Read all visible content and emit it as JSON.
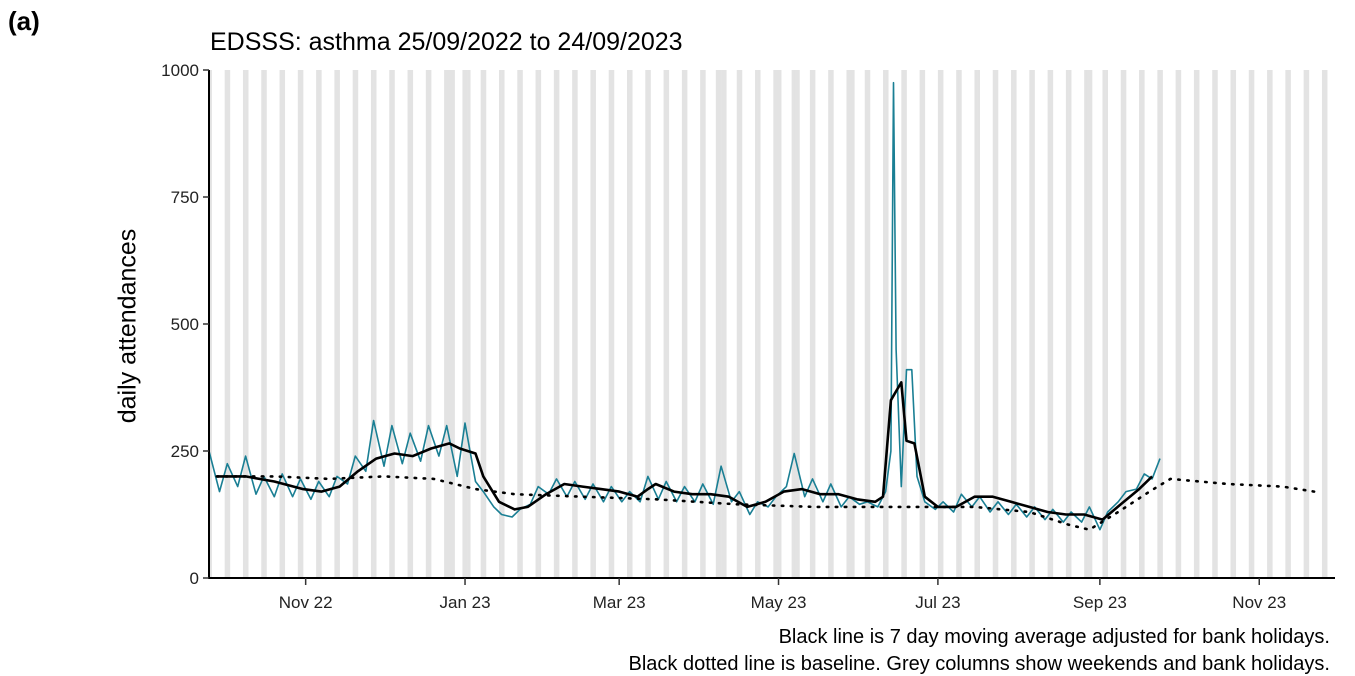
{
  "panel_label": "(a)",
  "chart_data": {
    "type": "line",
    "title": "EDSSS: asthma 25/09/2022 to 24/09/2023",
    "xlabel": "",
    "ylabel": "daily attendances",
    "ylim": [
      0,
      1000
    ],
    "yticks": [
      0,
      250,
      500,
      750,
      1000
    ],
    "xlim": [
      "2022-09-25",
      "2023-11-30"
    ],
    "xticks": [
      {
        "label": "Nov 22",
        "date": "2022-11-01"
      },
      {
        "label": "Jan 23",
        "date": "2023-01-01"
      },
      {
        "label": "Mar 23",
        "date": "2023-03-01"
      },
      {
        "label": "May 23",
        "date": "2023-05-01"
      },
      {
        "label": "Jul 23",
        "date": "2023-07-01"
      },
      {
        "label": "Sep 23",
        "date": "2023-09-01"
      },
      {
        "label": "Nov 23",
        "date": "2023-11-01"
      }
    ],
    "grid": false,
    "legend": "none",
    "shaded_columns": "weekends and bank holidays",
    "bank_holidays": [
      "2022-12-26",
      "2022-12-27",
      "2023-01-02",
      "2023-04-07",
      "2023-04-10",
      "2023-05-01",
      "2023-05-08",
      "2023-05-29",
      "2023-08-28"
    ],
    "colors": {
      "daily": "#1a7f94",
      "moving_average": "#000000",
      "baseline": "#000000",
      "shading": "#e3e3e3"
    },
    "series": [
      {
        "style": "daily",
        "start": "2022-09-25",
        "end": "2023-09-24",
        "points": [
          [
            "2022-09-25",
            250
          ],
          [
            "2022-09-29",
            170
          ],
          [
            "2022-10-02",
            225
          ],
          [
            "2022-10-06",
            180
          ],
          [
            "2022-10-09",
            240
          ],
          [
            "2022-10-13",
            165
          ],
          [
            "2022-10-16",
            200
          ],
          [
            "2022-10-20",
            160
          ],
          [
            "2022-10-23",
            205
          ],
          [
            "2022-10-27",
            160
          ],
          [
            "2022-10-30",
            195
          ],
          [
            "2022-11-03",
            155
          ],
          [
            "2022-11-06",
            190
          ],
          [
            "2022-11-10",
            160
          ],
          [
            "2022-11-13",
            200
          ],
          [
            "2022-11-17",
            185
          ],
          [
            "2022-11-20",
            240
          ],
          [
            "2022-11-24",
            210
          ],
          [
            "2022-11-27",
            310
          ],
          [
            "2022-12-01",
            220
          ],
          [
            "2022-12-04",
            300
          ],
          [
            "2022-12-08",
            225
          ],
          [
            "2022-12-11",
            285
          ],
          [
            "2022-12-15",
            230
          ],
          [
            "2022-12-18",
            300
          ],
          [
            "2022-12-22",
            240
          ],
          [
            "2022-12-25",
            300
          ],
          [
            "2022-12-29",
            200
          ],
          [
            "2023-01-01",
            305
          ],
          [
            "2023-01-05",
            190
          ],
          [
            "2023-01-08",
            170
          ],
          [
            "2023-01-12",
            140
          ],
          [
            "2023-01-15",
            125
          ],
          [
            "2023-01-19",
            120
          ],
          [
            "2023-01-22",
            135
          ],
          [
            "2023-01-26",
            145
          ],
          [
            "2023-01-29",
            180
          ],
          [
            "2023-02-02",
            165
          ],
          [
            "2023-02-05",
            195
          ],
          [
            "2023-02-09",
            160
          ],
          [
            "2023-02-12",
            190
          ],
          [
            "2023-02-16",
            155
          ],
          [
            "2023-02-19",
            185
          ],
          [
            "2023-02-23",
            150
          ],
          [
            "2023-02-26",
            180
          ],
          [
            "2023-03-02",
            150
          ],
          [
            "2023-03-05",
            170
          ],
          [
            "2023-03-09",
            150
          ],
          [
            "2023-03-12",
            200
          ],
          [
            "2023-03-16",
            155
          ],
          [
            "2023-03-19",
            190
          ],
          [
            "2023-03-23",
            150
          ],
          [
            "2023-03-26",
            180
          ],
          [
            "2023-03-30",
            150
          ],
          [
            "2023-04-02",
            185
          ],
          [
            "2023-04-06",
            145
          ],
          [
            "2023-04-09",
            220
          ],
          [
            "2023-04-13",
            150
          ],
          [
            "2023-04-16",
            170
          ],
          [
            "2023-04-20",
            125
          ],
          [
            "2023-04-23",
            150
          ],
          [
            "2023-04-27",
            140
          ],
          [
            "2023-04-30",
            160
          ],
          [
            "2023-05-04",
            180
          ],
          [
            "2023-05-07",
            245
          ],
          [
            "2023-05-11",
            160
          ],
          [
            "2023-05-14",
            195
          ],
          [
            "2023-05-18",
            150
          ],
          [
            "2023-05-21",
            185
          ],
          [
            "2023-05-25",
            140
          ],
          [
            "2023-05-28",
            160
          ],
          [
            "2023-06-01",
            145
          ],
          [
            "2023-06-04",
            150
          ],
          [
            "2023-06-08",
            140
          ],
          [
            "2023-06-11",
            170
          ],
          [
            "2023-06-13",
            250
          ],
          [
            "2023-06-14",
            975
          ],
          [
            "2023-06-15",
            450
          ],
          [
            "2023-06-17",
            180
          ],
          [
            "2023-06-19",
            410
          ],
          [
            "2023-06-21",
            410
          ],
          [
            "2023-06-23",
            200
          ],
          [
            "2023-06-26",
            150
          ],
          [
            "2023-06-30",
            135
          ],
          [
            "2023-07-03",
            150
          ],
          [
            "2023-07-07",
            130
          ],
          [
            "2023-07-10",
            165
          ],
          [
            "2023-07-14",
            140
          ],
          [
            "2023-07-17",
            160
          ],
          [
            "2023-07-21",
            130
          ],
          [
            "2023-07-24",
            150
          ],
          [
            "2023-07-28",
            125
          ],
          [
            "2023-07-31",
            145
          ],
          [
            "2023-08-04",
            120
          ],
          [
            "2023-08-07",
            140
          ],
          [
            "2023-08-11",
            115
          ],
          [
            "2023-08-14",
            135
          ],
          [
            "2023-08-18",
            110
          ],
          [
            "2023-08-21",
            130
          ],
          [
            "2023-08-25",
            110
          ],
          [
            "2023-08-28",
            140
          ],
          [
            "2023-09-01",
            95
          ],
          [
            "2023-09-04",
            130
          ],
          [
            "2023-09-08",
            150
          ],
          [
            "2023-09-11",
            170
          ],
          [
            "2023-09-15",
            175
          ],
          [
            "2023-09-18",
            205
          ],
          [
            "2023-09-21",
            195
          ],
          [
            "2023-09-24",
            235
          ]
        ]
      },
      {
        "style": "moving_average",
        "points": [
          [
            "2022-09-28",
            200
          ],
          [
            "2022-10-09",
            200
          ],
          [
            "2022-10-20",
            190
          ],
          [
            "2022-10-31",
            175
          ],
          [
            "2022-11-07",
            170
          ],
          [
            "2022-11-14",
            180
          ],
          [
            "2022-11-21",
            210
          ],
          [
            "2022-11-28",
            235
          ],
          [
            "2022-12-05",
            245
          ],
          [
            "2022-12-12",
            240
          ],
          [
            "2022-12-19",
            255
          ],
          [
            "2022-12-26",
            265
          ],
          [
            "2022-12-30",
            255
          ],
          [
            "2023-01-05",
            245
          ],
          [
            "2023-01-08",
            200
          ],
          [
            "2023-01-14",
            150
          ],
          [
            "2023-01-20",
            135
          ],
          [
            "2023-01-25",
            140
          ],
          [
            "2023-02-01",
            165
          ],
          [
            "2023-02-08",
            185
          ],
          [
            "2023-02-15",
            180
          ],
          [
            "2023-02-22",
            175
          ],
          [
            "2023-03-01",
            170
          ],
          [
            "2023-03-08",
            160
          ],
          [
            "2023-03-12",
            175
          ],
          [
            "2023-03-15",
            185
          ],
          [
            "2023-03-22",
            170
          ],
          [
            "2023-03-29",
            165
          ],
          [
            "2023-04-05",
            165
          ],
          [
            "2023-04-12",
            160
          ],
          [
            "2023-04-19",
            140
          ],
          [
            "2023-04-26",
            150
          ],
          [
            "2023-05-03",
            170
          ],
          [
            "2023-05-10",
            175
          ],
          [
            "2023-05-17",
            165
          ],
          [
            "2023-05-24",
            165
          ],
          [
            "2023-05-31",
            155
          ],
          [
            "2023-06-07",
            150
          ],
          [
            "2023-06-10",
            160
          ],
          [
            "2023-06-13",
            350
          ],
          [
            "2023-06-17",
            385
          ],
          [
            "2023-06-19",
            270
          ],
          [
            "2023-06-22",
            265
          ],
          [
            "2023-06-26",
            160
          ],
          [
            "2023-07-01",
            140
          ],
          [
            "2023-07-08",
            140
          ],
          [
            "2023-07-15",
            160
          ],
          [
            "2023-07-22",
            160
          ],
          [
            "2023-07-29",
            150
          ],
          [
            "2023-08-05",
            140
          ],
          [
            "2023-08-12",
            130
          ],
          [
            "2023-08-19",
            125
          ],
          [
            "2023-08-26",
            125
          ],
          [
            "2023-09-02",
            115
          ],
          [
            "2023-09-09",
            145
          ],
          [
            "2023-09-16",
            175
          ],
          [
            "2023-09-21",
            200
          ]
        ]
      },
      {
        "style": "baseline",
        "points": [
          [
            "2022-09-28",
            200
          ],
          [
            "2022-10-20",
            200
          ],
          [
            "2022-11-10",
            195
          ],
          [
            "2022-12-01",
            200
          ],
          [
            "2022-12-20",
            195
          ],
          [
            "2023-01-05",
            175
          ],
          [
            "2023-01-20",
            165
          ],
          [
            "2023-02-15",
            160
          ],
          [
            "2023-03-15",
            155
          ],
          [
            "2023-04-15",
            145
          ],
          [
            "2023-05-15",
            140
          ],
          [
            "2023-06-15",
            140
          ],
          [
            "2023-07-15",
            140
          ],
          [
            "2023-08-05",
            130
          ],
          [
            "2023-08-20",
            105
          ],
          [
            "2023-08-28",
            95
          ],
          [
            "2023-09-08",
            130
          ],
          [
            "2023-09-20",
            170
          ],
          [
            "2023-09-28",
            195
          ],
          [
            "2023-10-20",
            185
          ],
          [
            "2023-11-10",
            180
          ],
          [
            "2023-11-22",
            170
          ]
        ]
      }
    ]
  },
  "captions": [
    "Black line is 7 day moving average adjusted for bank holidays.",
    "Black dotted line is baseline. Grey columns show weekends and bank holidays."
  ]
}
